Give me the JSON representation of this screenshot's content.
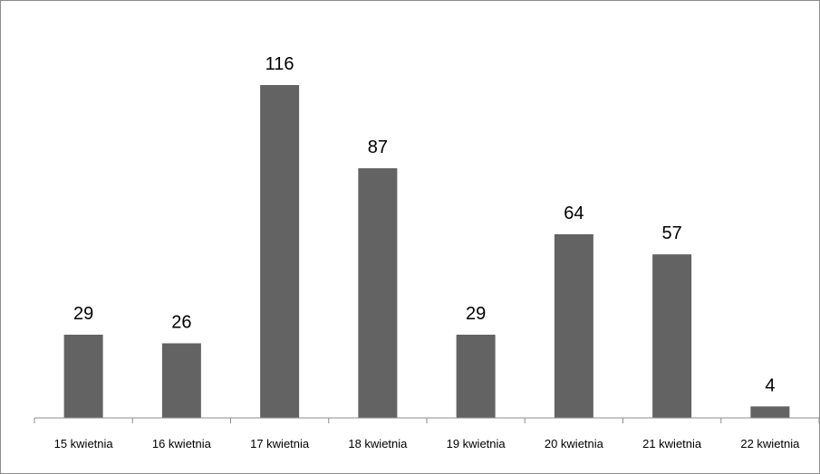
{
  "chart_data": {
    "type": "bar",
    "title": "",
    "xlabel": "",
    "ylabel": "",
    "categories": [
      "15 kwietnia",
      "16 kwietnia",
      "17 kwietnia",
      "18 kwietnia",
      "19 kwietnia",
      "20 kwietnia",
      "21 kwietnia",
      "22 kwietnia"
    ],
    "values": [
      29,
      26,
      116,
      87,
      29,
      64,
      57,
      4
    ],
    "data_labels": [
      "29",
      "26",
      "116",
      "87",
      "29",
      "64",
      "57",
      "4"
    ],
    "ylim": [
      0,
      116
    ],
    "grid": false,
    "legend": "none",
    "bar_color": "#636363"
  }
}
